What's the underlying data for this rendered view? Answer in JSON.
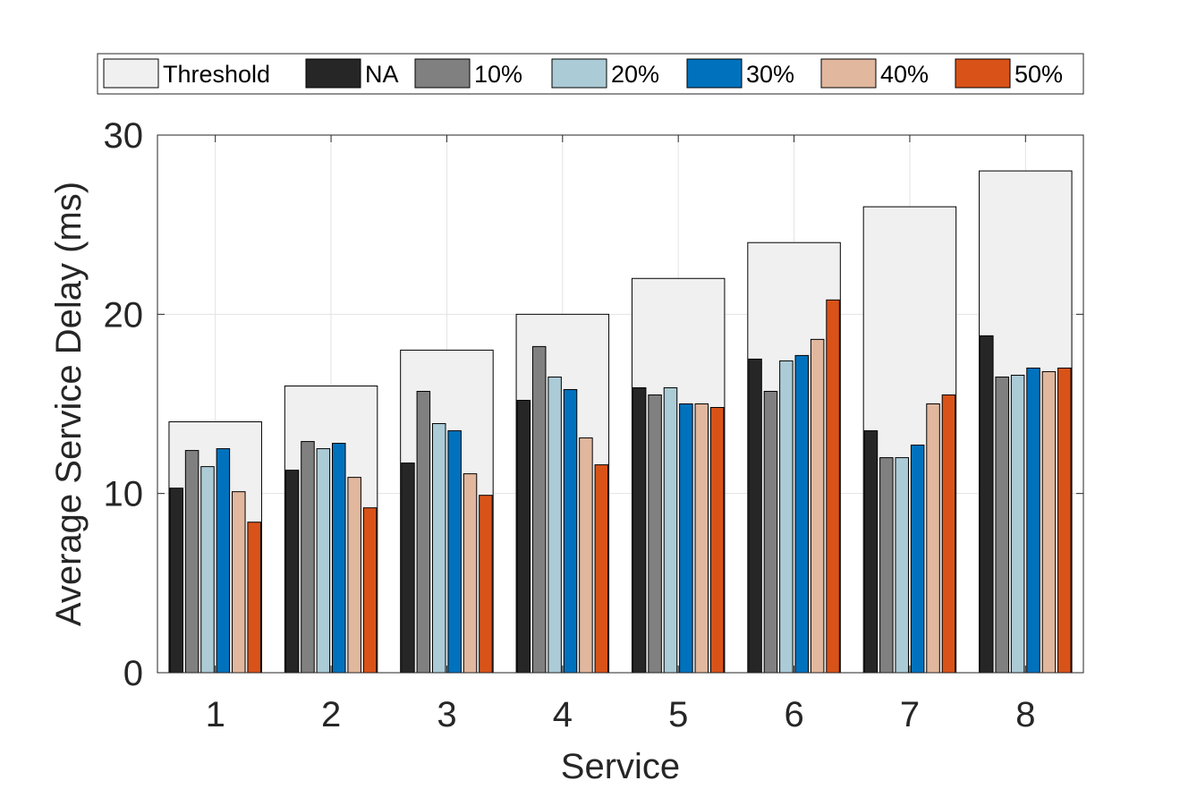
{
  "chart_data": {
    "type": "bar",
    "title": "",
    "xlabel": "Service",
    "ylabel": "Average Service Delay (ms)",
    "ylim": [
      0,
      30
    ],
    "yticks": [
      "0",
      "10",
      "20",
      "30"
    ],
    "categories": [
      "1",
      "2",
      "3",
      "4",
      "5",
      "6",
      "7",
      "8"
    ],
    "grid": true,
    "legend_position": "top",
    "threshold": {
      "name": "Threshold",
      "color": "#f0f0f0",
      "values": [
        14,
        16,
        18,
        20,
        22,
        24,
        26,
        28
      ]
    },
    "series": [
      {
        "name": "NA",
        "color": "#262626",
        "values": [
          10.3,
          11.3,
          11.7,
          15.2,
          15.9,
          17.5,
          13.5,
          18.8
        ]
      },
      {
        "name": "10%",
        "color": "#808080",
        "values": [
          12.4,
          12.9,
          15.7,
          18.2,
          15.5,
          15.7,
          12.0,
          16.5
        ]
      },
      {
        "name": "20%",
        "color": "#abcbd6",
        "values": [
          11.5,
          12.5,
          13.9,
          16.5,
          15.9,
          17.4,
          12.0,
          16.6
        ]
      },
      {
        "name": "30%",
        "color": "#0072bd",
        "values": [
          12.5,
          12.8,
          13.5,
          15.8,
          15.0,
          17.7,
          12.7,
          17.0
        ]
      },
      {
        "name": "40%",
        "color": "#e1b79e",
        "values": [
          10.1,
          10.9,
          11.1,
          13.1,
          15.0,
          18.6,
          15.0,
          16.8
        ]
      },
      {
        "name": "50%",
        "color": "#d95319",
        "values": [
          8.4,
          9.2,
          9.9,
          11.6,
          14.8,
          20.8,
          15.5,
          17.0
        ]
      }
    ]
  }
}
